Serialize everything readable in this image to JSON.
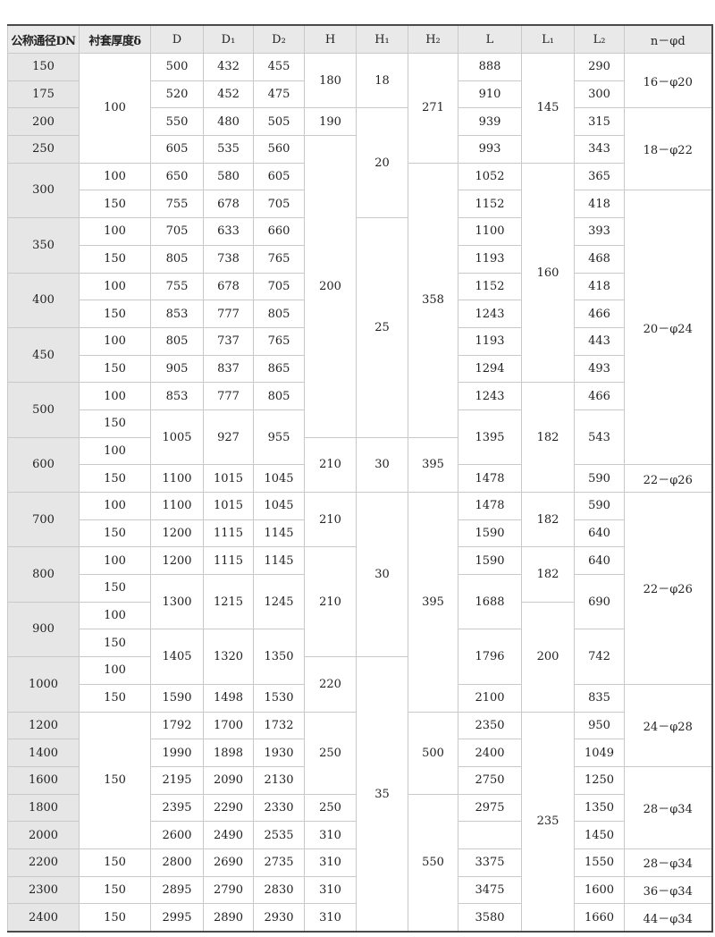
{
  "table": {
    "headers": [
      "公称通径DN",
      "衬套厚度δ",
      "D",
      "D₁",
      "D₂",
      "H",
      "H₁",
      "H₂",
      "L",
      "L₁",
      "L₂",
      "n－φd"
    ],
    "rows": [
      [
        "150",
        [
          "100",
          4
        ],
        "500",
        "432",
        "455",
        [
          "180",
          2
        ],
        [
          "18",
          2
        ],
        [
          "271",
          4
        ],
        "888",
        [
          "145",
          4
        ],
        "290",
        [
          "16－φ20",
          2
        ]
      ],
      [
        "175",
        null,
        "520",
        "452",
        "475",
        null,
        null,
        null,
        "910",
        null,
        "300",
        null
      ],
      [
        "200",
        null,
        "550",
        "480",
        "505",
        "190",
        [
          "20",
          4
        ],
        null,
        "939",
        null,
        "315",
        [
          "18－φ22",
          3
        ]
      ],
      [
        "250",
        null,
        "605",
        "535",
        "560",
        [
          "200",
          11
        ],
        null,
        null,
        "993",
        null,
        "343",
        null
      ],
      [
        [
          "300",
          2
        ],
        "100",
        "650",
        "580",
        "605",
        null,
        null,
        [
          "358",
          10
        ],
        "1052",
        [
          "160",
          8
        ],
        "365",
        null
      ],
      [
        null,
        "150",
        "755",
        "678",
        "705",
        null,
        null,
        null,
        "1152",
        null,
        "418",
        [
          "20－φ24",
          10
        ]
      ],
      [
        [
          "350",
          2
        ],
        "100",
        "705",
        "633",
        "660",
        null,
        [
          "25",
          8
        ],
        null,
        "1100",
        null,
        "393",
        null
      ],
      [
        null,
        "150",
        "805",
        "738",
        "765",
        null,
        null,
        null,
        "1193",
        null,
        "468",
        null
      ],
      [
        [
          "400",
          2
        ],
        "100",
        "755",
        "678",
        "705",
        null,
        null,
        null,
        "1152",
        null,
        "418",
        null
      ],
      [
        null,
        "150",
        "853",
        "777",
        "805",
        null,
        null,
        null,
        "1243",
        null,
        "466",
        null
      ],
      [
        [
          "450",
          2
        ],
        "100",
        "805",
        "737",
        "765",
        null,
        null,
        null,
        "1193",
        null,
        "443",
        null
      ],
      [
        null,
        "150",
        "905",
        "837",
        "865",
        null,
        null,
        null,
        "1294",
        null,
        "493",
        null
      ],
      [
        [
          "500",
          2
        ],
        "100",
        "853",
        "777",
        "805",
        null,
        null,
        null,
        "1243",
        [
          "182",
          4
        ],
        "466",
        null
      ],
      [
        null,
        "150",
        [
          "1005",
          2
        ],
        [
          "927",
          2
        ],
        [
          "955",
          2
        ],
        null,
        null,
        null,
        [
          "1395",
          2
        ],
        null,
        [
          "543",
          2
        ],
        null
      ],
      [
        [
          "600",
          2
        ],
        "100",
        null,
        null,
        null,
        [
          "210",
          2
        ],
        [
          "30",
          2
        ],
        [
          "395",
          2
        ],
        null,
        null,
        null,
        null
      ],
      [
        null,
        "150",
        "1100",
        "1015",
        "1045",
        null,
        null,
        null,
        "1478",
        null,
        "590",
        "22－φ26"
      ],
      [
        [
          "700",
          2
        ],
        "100",
        "1100",
        "1015",
        "1045",
        [
          "210",
          2
        ],
        [
          "30",
          6
        ],
        [
          "395",
          8
        ],
        "1478",
        [
          "182",
          2
        ],
        "590",
        [
          "22－φ26",
          7
        ]
      ],
      [
        null,
        "150",
        "1200",
        "1115",
        "1145",
        null,
        null,
        null,
        "1590",
        null,
        "640",
        null
      ],
      [
        [
          "800",
          2
        ],
        "100",
        "1200",
        "1115",
        "1145",
        [
          "210",
          4
        ],
        null,
        null,
        "1590",
        [
          "182",
          2
        ],
        "640",
        null
      ],
      [
        null,
        "150",
        [
          "1300",
          2
        ],
        [
          "1215",
          2
        ],
        [
          "1245",
          2
        ],
        null,
        null,
        null,
        [
          "1688",
          2
        ],
        null,
        [
          "690",
          2
        ],
        null
      ],
      [
        [
          "900",
          2
        ],
        "100",
        null,
        null,
        null,
        null,
        null,
        null,
        null,
        [
          "200",
          4
        ],
        null,
        null
      ],
      [
        null,
        "150",
        [
          "1405",
          2
        ],
        [
          "1320",
          2
        ],
        [
          "1350",
          2
        ],
        null,
        null,
        null,
        [
          "1796",
          2
        ],
        null,
        [
          "742",
          2
        ],
        null
      ],
      [
        [
          "1000",
          2
        ],
        "100",
        null,
        null,
        null,
        [
          "220",
          2
        ],
        [
          "35",
          10
        ],
        null,
        null,
        null,
        null,
        null
      ],
      [
        null,
        "150",
        "1590",
        "1498",
        "1530",
        null,
        null,
        null,
        "2100",
        null,
        "835",
        [
          "24－φ28",
          3
        ]
      ],
      [
        "1200",
        [
          "150",
          5
        ],
        "1792",
        "1700",
        "1732",
        [
          "250",
          3
        ],
        null,
        [
          "500",
          3
        ],
        "2350",
        [
          "235",
          8
        ],
        "950",
        null
      ],
      [
        "1400",
        null,
        "1990",
        "1898",
        "1930",
        null,
        null,
        null,
        "2400",
        null,
        "1049",
        null
      ],
      [
        "1600",
        null,
        "2195",
        "2090",
        "2130",
        null,
        null,
        null,
        "2750",
        null,
        "1250",
        [
          "28－φ34",
          3
        ]
      ],
      [
        "1800",
        null,
        "2395",
        "2290",
        "2330",
        "250",
        null,
        [
          "550",
          5
        ],
        "2975",
        null,
        "1350",
        null
      ],
      [
        "2000",
        null,
        "2600",
        "2490",
        "2535",
        "310",
        null,
        null,
        "",
        null,
        "1450",
        null
      ],
      [
        "2200",
        "150",
        "2800",
        "2690",
        "2735",
        "310",
        null,
        null,
        "3375",
        null,
        "1550",
        "28－φ34"
      ],
      [
        "2300",
        "150",
        "2895",
        "2790",
        "2830",
        "310",
        null,
        null,
        "3475",
        null,
        "1600",
        "36－φ34"
      ],
      [
        "2400",
        "150",
        "2995",
        "2890",
        "2930",
        "310",
        null,
        null,
        "3580",
        null,
        "1660",
        "44－φ34"
      ]
    ]
  }
}
